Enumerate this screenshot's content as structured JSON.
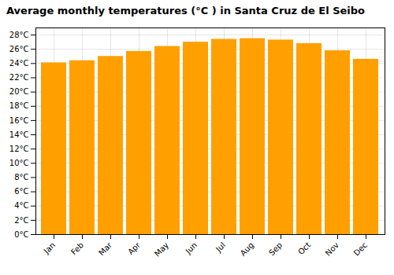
{
  "chart_data": {
    "type": "bar",
    "title": "Average monthly temperatures (°C ) in Santa Cruz de El Seibo",
    "categories": [
      "Jan",
      "Feb",
      "Mar",
      "Apr",
      "May",
      "Jun",
      "Jul",
      "Aug",
      "Sep",
      "Oct",
      "Nov",
      "Dec"
    ],
    "values": [
      24.1,
      24.4,
      25.0,
      25.7,
      26.4,
      27.0,
      27.4,
      27.5,
      27.3,
      26.8,
      25.8,
      24.6
    ],
    "color": "#FFA000",
    "ylim": [
      0,
      29
    ],
    "yticks": [
      {
        "value": 0,
        "label": "0°C"
      },
      {
        "value": 2,
        "label": "2°C"
      },
      {
        "value": 4,
        "label": "4°C"
      },
      {
        "value": 6,
        "label": "6°C"
      },
      {
        "value": 8,
        "label": "8°C"
      },
      {
        "value": 10,
        "label": "10°C"
      },
      {
        "value": 12,
        "label": "12°C"
      },
      {
        "value": 14,
        "label": "14°C"
      },
      {
        "value": 16,
        "label": "16°C"
      },
      {
        "value": 18,
        "label": "18°C"
      },
      {
        "value": 20,
        "label": "20°C"
      },
      {
        "value": 22,
        "label": "22°C"
      },
      {
        "value": 24,
        "label": "24°C"
      },
      {
        "value": 26,
        "label": "26°C"
      },
      {
        "value": 28,
        "label": "28°C"
      }
    ],
    "grid": true
  }
}
